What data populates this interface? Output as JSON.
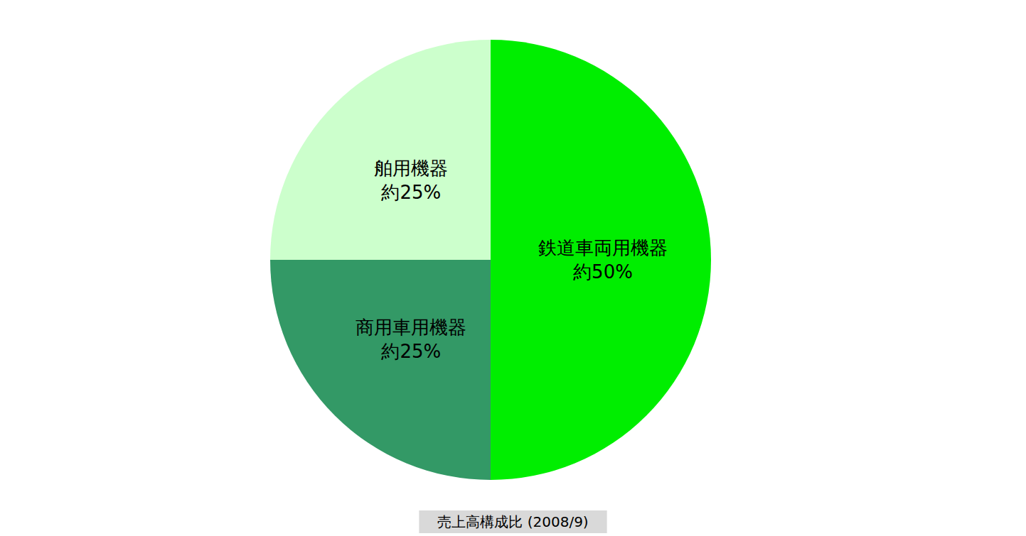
{
  "chart_data": {
    "type": "pie",
    "title": "売上高構成比 (2008/9)",
    "categories": [
      "鉄道車両用機器",
      "商用車用機器",
      "舶用機器"
    ],
    "values": [
      50,
      25,
      25
    ],
    "value_labels": [
      "約50%",
      "約25%",
      "約25%"
    ],
    "colors": [
      "#00ee00",
      "#339966",
      "#ccffcc"
    ],
    "data_labels": true
  }
}
